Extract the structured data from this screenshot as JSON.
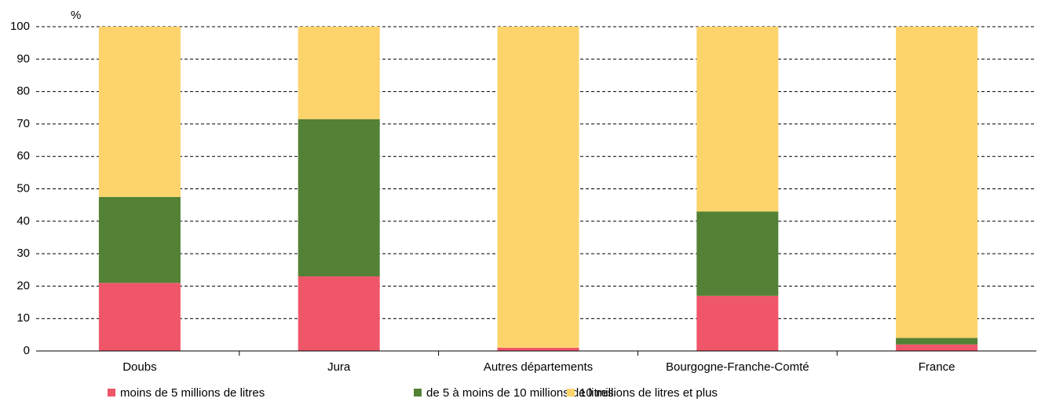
{
  "chart_data": {
    "type": "stacked_bar",
    "ylabel": "%",
    "categories": [
      "Doubs",
      "Jura",
      "Autres départements",
      "Bourgogne-Franche-Comté",
      "France"
    ],
    "series": [
      {
        "name": "moins de 5 millions de litres",
        "color": "#f0566a",
        "values": [
          21,
          23,
          1,
          17,
          2
        ]
      },
      {
        "name": "de 5 à moins de 10 millions de litres",
        "color": "#538135",
        "values": [
          26.5,
          48.5,
          0,
          26,
          2
        ]
      },
      {
        "name": "10 millions de litres et plus",
        "color": "#fcd46b",
        "values": [
          52.5,
          28.5,
          99,
          57,
          96
        ]
      }
    ],
    "ylim": [
      0,
      100
    ],
    "yticks": [
      0,
      10,
      20,
      30,
      40,
      50,
      60,
      70,
      80,
      90,
      100
    ],
    "grid": true,
    "legend": "bottom"
  }
}
